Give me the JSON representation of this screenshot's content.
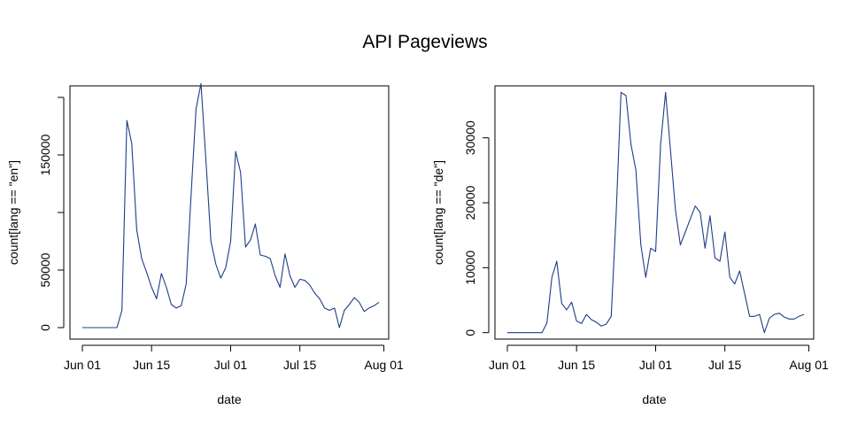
{
  "title": "API Pageviews",
  "line_color": "#1f3c88",
  "chart_data": [
    {
      "type": "line",
      "xlabel": "date",
      "ylabel": "count[lang == \"en\"]",
      "xlim": [
        0,
        60
      ],
      "ylim": [
        -10000,
        210000
      ],
      "xticks": [
        {
          "value": 0,
          "label": "Jun 01"
        },
        {
          "value": 14,
          "label": "Jun 15"
        },
        {
          "value": 30,
          "label": "Jul 01"
        },
        {
          "value": 44,
          "label": "Jul 15"
        },
        {
          "value": 61,
          "label": "Aug 01"
        }
      ],
      "yticks": [
        {
          "value": 0,
          "label": "0"
        },
        {
          "value": 50000,
          "label": "50000"
        },
        {
          "value": 150000,
          "label": "150000"
        }
      ],
      "yminor": [
        100000,
        200000
      ],
      "series": [
        {
          "name": "en",
          "x": [
            0,
            1,
            2,
            3,
            4,
            5,
            6,
            7,
            8,
            9,
            10,
            11,
            12,
            13,
            14,
            15,
            16,
            17,
            18,
            19,
            20,
            21,
            22,
            23,
            24,
            25,
            26,
            27,
            28,
            29,
            30,
            31,
            32,
            33,
            34,
            35,
            36,
            37,
            38,
            39,
            40,
            41,
            42,
            43,
            44,
            45,
            46,
            47,
            48,
            49,
            50,
            51,
            52,
            53,
            54,
            55,
            56,
            57,
            58,
            59,
            60
          ],
          "values": [
            0,
            0,
            0,
            0,
            0,
            0,
            0,
            0,
            15000,
            180000,
            160000,
            85000,
            60000,
            48000,
            35000,
            25000,
            47000,
            35000,
            20000,
            17000,
            19000,
            38000,
            115000,
            190000,
            212000,
            145000,
            75000,
            55000,
            43000,
            52000,
            75000,
            153000,
            135000,
            70000,
            76000,
            90000,
            63000,
            62000,
            60000,
            45000,
            35000,
            64000,
            45000,
            35000,
            42000,
            41000,
            37000,
            30000,
            25000,
            17000,
            15000,
            17000,
            0,
            15000,
            20000,
            26000,
            22000,
            14000,
            17000,
            19000,
            22000
          ]
        }
      ]
    },
    {
      "type": "line",
      "xlabel": "date",
      "ylabel": "count[lang == \"de\"]",
      "xlim": [
        0,
        60
      ],
      "ylim": [
        -1000,
        38000
      ],
      "xticks": [
        {
          "value": 0,
          "label": "Jun 01"
        },
        {
          "value": 14,
          "label": "Jun 15"
        },
        {
          "value": 30,
          "label": "Jul 01"
        },
        {
          "value": 44,
          "label": "Jul 15"
        },
        {
          "value": 61,
          "label": "Aug 01"
        }
      ],
      "yticks": [
        {
          "value": 0,
          "label": "0"
        },
        {
          "value": 10000,
          "label": "10000"
        },
        {
          "value": 20000,
          "label": "20000"
        },
        {
          "value": 30000,
          "label": "30000"
        }
      ],
      "yminor": [],
      "series": [
        {
          "name": "de",
          "x": [
            0,
            1,
            2,
            3,
            4,
            5,
            6,
            7,
            8,
            9,
            10,
            11,
            12,
            13,
            14,
            15,
            16,
            17,
            18,
            19,
            20,
            21,
            22,
            23,
            24,
            25,
            26,
            27,
            28,
            29,
            30,
            31,
            32,
            33,
            34,
            35,
            36,
            37,
            38,
            39,
            40,
            41,
            42,
            43,
            44,
            45,
            46,
            47,
            48,
            49,
            50,
            51,
            52,
            53,
            54,
            55,
            56,
            57,
            58,
            59,
            60
          ],
          "values": [
            0,
            0,
            0,
            0,
            0,
            0,
            0,
            0,
            1500,
            8500,
            11000,
            4500,
            3500,
            4700,
            1800,
            1400,
            2800,
            2000,
            1600,
            1000,
            1300,
            2500,
            18000,
            37000,
            36500,
            29000,
            25000,
            13500,
            8500,
            13000,
            12500,
            29000,
            37000,
            28000,
            19000,
            13500,
            15500,
            17500,
            19500,
            18500,
            13000,
            18000,
            11500,
            11000,
            15500,
            8500,
            7500,
            9500,
            6000,
            2500,
            2500,
            2800,
            0,
            2200,
            2800,
            3000,
            2400,
            2100,
            2100,
            2500,
            2800
          ]
        }
      ]
    }
  ]
}
